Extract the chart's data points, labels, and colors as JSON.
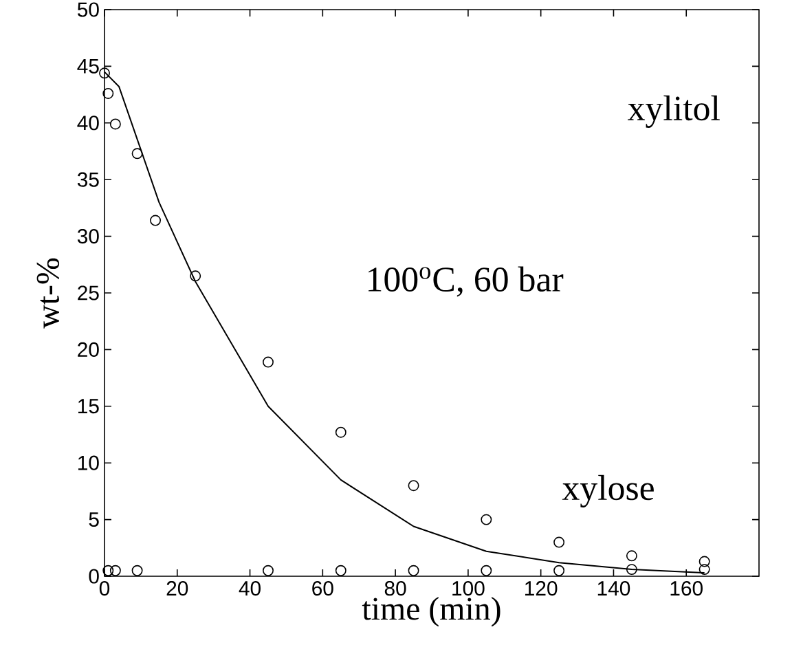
{
  "chart_data": {
    "type": "scatter",
    "xlabel": "time (min)",
    "ylabel": "wt-%",
    "annotations": [
      "xylitol",
      "100$^{o}$C, 60 bar",
      "xylose"
    ],
    "xlim": [
      0,
      180
    ],
    "xticks": [
      0,
      20,
      40,
      60,
      80,
      100,
      120,
      140,
      160
    ],
    "ylim": [
      0,
      50
    ],
    "yticks": [
      0,
      5,
      10,
      15,
      20,
      25,
      30,
      35,
      40,
      45,
      50
    ],
    "series": [
      {
        "marker": "circle",
        "color": "#000000",
        "x": [
          0,
          1,
          3,
          9,
          14,
          25,
          45,
          65,
          85,
          105,
          125,
          145,
          165
        ],
        "values": [
          44.4,
          42.6,
          39.9,
          37.3,
          31.4,
          26.5,
          18.9,
          12.7,
          8.0,
          5.0,
          3.0,
          1.8,
          1.3
        ]
      },
      {
        "marker": "circle",
        "color": "#000000",
        "x": [
          1,
          3,
          9,
          45,
          65,
          85,
          105,
          125,
          145,
          165
        ],
        "values": [
          0.5,
          0.5,
          0.5,
          0.5,
          0.5,
          0.5,
          0.5,
          0.5,
          0.6,
          0.6
        ]
      },
      {
        "type": "line",
        "marker": "none",
        "line_style": "solid",
        "color": "#000000",
        "x": [
          0,
          4,
          15,
          25,
          45,
          65,
          85,
          105,
          125,
          145,
          165
        ],
        "values": [
          44.5,
          43.2,
          33.0,
          26.0,
          15.0,
          8.5,
          4.4,
          2.2,
          1.2,
          0.6,
          0.3
        ]
      }
    ]
  }
}
